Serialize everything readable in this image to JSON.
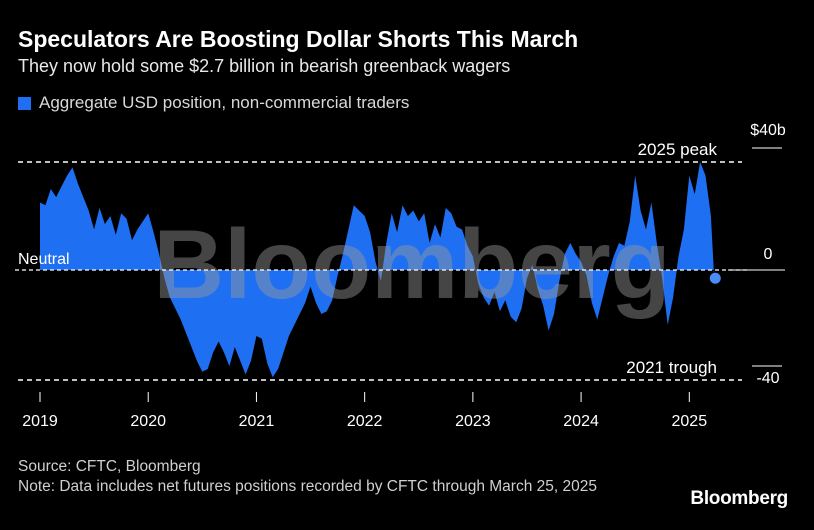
{
  "title": "Speculators Are Boosting Dollar Shorts This March",
  "subtitle": "They now hold some $2.7 billion in bearish greenback wagers",
  "legend": {
    "label": "Aggregate USD position, non-commercial traders",
    "color": "#1f6ff2"
  },
  "footer": {
    "source": "Source: CFTC, Bloomberg",
    "note": "Note: Data includes net futures positions recorded by CFTC through March 25, 2025"
  },
  "brand": "Bloomberg",
  "watermark": "Bloomberg",
  "colors": {
    "background": "#000000",
    "series": "#1f6ff2",
    "reference": "#ffffff"
  },
  "chart_data": {
    "type": "area",
    "xlim": [
      2019.0,
      2025.45
    ],
    "ylim": [
      -40,
      40
    ],
    "x_ticks": [
      2019,
      2020,
      2021,
      2022,
      2023,
      2024,
      2025
    ],
    "x_tick_labels": [
      "2019",
      "2020",
      "2021",
      "2022",
      "2023",
      "2024",
      "2025"
    ],
    "y_ticks": [
      {
        "value": 40,
        "label": "$40b"
      },
      {
        "value": 0,
        "label": "0"
      },
      {
        "value": -40,
        "label": "-40"
      }
    ],
    "reference_lines": [
      {
        "value": 40,
        "label": "2025 peak"
      },
      {
        "value": 0,
        "label": "Neutral"
      },
      {
        "value": -40,
        "label": "2021 trough"
      }
    ],
    "series": [
      {
        "name": "Aggregate USD position, non-commercial traders",
        "x": [
          2019.0,
          2019.05,
          2019.1,
          2019.15,
          2019.2,
          2019.25,
          2019.3,
          2019.35,
          2019.4,
          2019.45,
          2019.5,
          2019.55,
          2019.6,
          2019.65,
          2019.7,
          2019.75,
          2019.8,
          2019.85,
          2019.9,
          2019.95,
          2020.0,
          2020.05,
          2020.1,
          2020.15,
          2020.2,
          2020.25,
          2020.3,
          2020.35,
          2020.4,
          2020.45,
          2020.5,
          2020.55,
          2020.6,
          2020.65,
          2020.7,
          2020.75,
          2020.8,
          2020.85,
          2020.9,
          2020.95,
          2021.0,
          2021.05,
          2021.1,
          2021.15,
          2021.2,
          2021.25,
          2021.3,
          2021.35,
          2021.4,
          2021.45,
          2021.5,
          2021.55,
          2021.6,
          2021.65,
          2021.7,
          2021.75,
          2021.8,
          2021.85,
          2021.9,
          2021.95,
          2022.0,
          2022.05,
          2022.1,
          2022.15,
          2022.2,
          2022.25,
          2022.3,
          2022.35,
          2022.4,
          2022.45,
          2022.5,
          2022.55,
          2022.6,
          2022.65,
          2022.7,
          2022.75,
          2022.8,
          2022.85,
          2022.9,
          2022.95,
          2023.0,
          2023.05,
          2023.1,
          2023.15,
          2023.2,
          2023.25,
          2023.3,
          2023.35,
          2023.4,
          2023.45,
          2023.5,
          2023.55,
          2023.6,
          2023.65,
          2023.7,
          2023.75,
          2023.8,
          2023.85,
          2023.9,
          2023.95,
          2024.0,
          2024.05,
          2024.1,
          2024.15,
          2024.2,
          2024.25,
          2024.3,
          2024.35,
          2024.4,
          2024.45,
          2024.5,
          2024.55,
          2024.6,
          2024.65,
          2024.7,
          2024.75,
          2024.8,
          2024.85,
          2024.9,
          2024.95,
          2025.0,
          2025.05,
          2025.1,
          2025.15,
          2025.2,
          2025.23
        ],
        "y": [
          25,
          24,
          30,
          27,
          31,
          35,
          38,
          32,
          27,
          22,
          15,
          23,
          17,
          20,
          13,
          21,
          19,
          11,
          15,
          18,
          21,
          14,
          6,
          -3,
          -10,
          -14,
          -18,
          -23,
          -28,
          -33,
          -37,
          -36,
          -30,
          -26,
          -30,
          -35,
          -28,
          -33,
          -38,
          -33,
          -24,
          -25,
          -34,
          -39,
          -36,
          -30,
          -24,
          -20,
          -16,
          -12,
          -6,
          -12,
          -16,
          -15,
          -11,
          -2,
          6,
          15,
          24,
          22,
          20,
          14,
          3,
          -4,
          10,
          21,
          14,
          24,
          20,
          22,
          18,
          21,
          10,
          17,
          12,
          23,
          21,
          16,
          15,
          9,
          5,
          -5,
          -10,
          -13,
          -8,
          -15,
          -11,
          -17,
          -19,
          -14,
          -3,
          2,
          -7,
          -13,
          -22,
          -16,
          -4,
          6,
          10,
          6,
          3,
          -2,
          -12,
          -18,
          -10,
          -2,
          5,
          10,
          9,
          18,
          35,
          22,
          15,
          25,
          10,
          -3,
          -20,
          -10,
          5,
          15,
          35,
          28,
          40,
          35,
          20,
          -3
        ]
      }
    ],
    "last_point": {
      "x": 2025.24,
      "y": -3
    }
  }
}
